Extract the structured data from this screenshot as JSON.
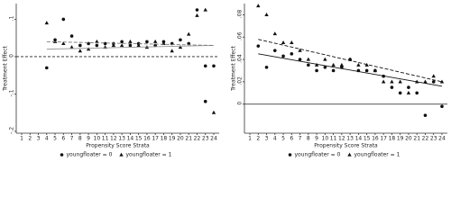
{
  "chart_data": [
    {
      "type": "scatter",
      "x_label": "Propensity Score Strata",
      "y_label": "Treatment Effect",
      "xlim": [
        0.35,
        24.65
      ],
      "ylim": [
        -0.205,
        0.142
      ],
      "xticks": [
        1,
        2,
        3,
        4,
        5,
        6,
        7,
        8,
        9,
        10,
        11,
        12,
        13,
        14,
        15,
        16,
        17,
        18,
        19,
        20,
        21,
        22,
        23,
        24
      ],
      "yticks": [
        {
          "value": -0.2,
          "label": "-.2"
        },
        {
          "value": -0.1,
          "label": "-.1"
        },
        0,
        {
          "value": 0.1,
          "label": ".1"
        }
      ],
      "reference_line": 0,
      "reference_style": "dashed",
      "series": [
        {
          "name": "youngfloater = 0",
          "marker": "circle",
          "color": "#111",
          "x": [
            4,
            5,
            6,
            7,
            8,
            9,
            10,
            11,
            12,
            13,
            14,
            15,
            16,
            17,
            18,
            19,
            20,
            21,
            22,
            23,
            24
          ],
          "values": [
            -0.03,
            0.045,
            0.1,
            0.055,
            0.03,
            0.035,
            0.03,
            0.035,
            0.035,
            0.04,
            0.03,
            0.035,
            0.04,
            0.03,
            0.04,
            0.035,
            0.045,
            0.035,
            0.125,
            -0.025,
            -0.025
          ]
        },
        {
          "name": "youngfloater = 1",
          "marker": "triangle",
          "color": "#111",
          "x": [
            4,
            5,
            6,
            7,
            8,
            9,
            10,
            11,
            12,
            13,
            14,
            15,
            16,
            17,
            18,
            19,
            20,
            21,
            22,
            23,
            24
          ],
          "values": [
            0.09,
            0.04,
            0.035,
            0.025,
            0.015,
            0.02,
            0.04,
            0.025,
            0.03,
            0.03,
            0.04,
            0.03,
            0.025,
            0.04,
            0.035,
            0.015,
            0.025,
            0.06,
            0.11,
            0.125,
            -0.15
          ]
        },
        {
          "marker": "none",
          "dash": false,
          "color": "#999",
          "x": [
            4,
            24
          ],
          "values": [
            0.02,
            0.03
          ]
        },
        {
          "marker": "none",
          "dash": true,
          "color": "#777",
          "x": [
            4,
            24
          ],
          "values": [
            0.04,
            0.03
          ]
        },
        {
          "marker": "circle",
          "color": "#111",
          "x": [
            23
          ],
          "values": [
            -0.12
          ]
        }
      ]
    },
    {
      "type": "scatter",
      "x_label": "Propensity Score Strata",
      "y_label": "Treatment Effect",
      "xlim": [
        0.35,
        24.65
      ],
      "ylim": [
        -0.026,
        0.09
      ],
      "xticks": [
        1,
        2,
        3,
        4,
        5,
        6,
        7,
        8,
        9,
        10,
        11,
        12,
        13,
        14,
        15,
        16,
        17,
        18,
        19,
        20,
        21,
        22,
        23,
        24
      ],
      "yticks": [
        0,
        {
          "value": 0.02,
          "label": ".02"
        },
        {
          "value": 0.04,
          "label": ".04"
        },
        {
          "value": 0.06,
          "label": ".06"
        },
        {
          "value": 0.08,
          "label": ".08"
        }
      ],
      "reference_line": 0,
      "reference_style": "solid",
      "series": [
        {
          "name": "youngfloater = 0",
          "marker": "circle",
          "color": "#111",
          "x": [
            2,
            3,
            4,
            5,
            6,
            7,
            8,
            9,
            10,
            11,
            12,
            13,
            14,
            15,
            16,
            17,
            18,
            19,
            20,
            21,
            22,
            23,
            24
          ],
          "values": [
            0.052,
            0.033,
            0.048,
            0.043,
            0.045,
            0.04,
            0.035,
            0.03,
            0.033,
            0.03,
            0.033,
            0.04,
            0.03,
            0.03,
            0.03,
            0.025,
            0.015,
            0.01,
            0.015,
            0.01,
            -0.01,
            0.02,
            -0.002
          ]
        },
        {
          "name": "youngfloater = 1",
          "marker": "triangle",
          "color": "#111",
          "x": [
            2,
            3,
            4,
            5,
            6,
            7,
            8,
            9,
            10,
            11,
            12,
            13,
            14,
            15,
            16,
            17,
            18,
            19,
            20,
            21,
            22,
            23,
            24
          ],
          "values": [
            0.088,
            0.08,
            0.063,
            0.055,
            0.055,
            0.048,
            0.04,
            0.035,
            0.04,
            0.035,
            0.035,
            0.04,
            0.035,
            0.035,
            0.03,
            0.02,
            0.02,
            0.02,
            0.01,
            0.02,
            0.02,
            0.025,
            0.02
          ]
        },
        {
          "marker": "none",
          "dash": false,
          "color": "#111",
          "x": [
            2,
            24
          ],
          "values": [
            0.045,
            0.016
          ]
        },
        {
          "marker": "none",
          "dash": true,
          "color": "#111",
          "x": [
            2,
            24
          ],
          "values": [
            0.058,
            0.02
          ]
        }
      ]
    }
  ]
}
